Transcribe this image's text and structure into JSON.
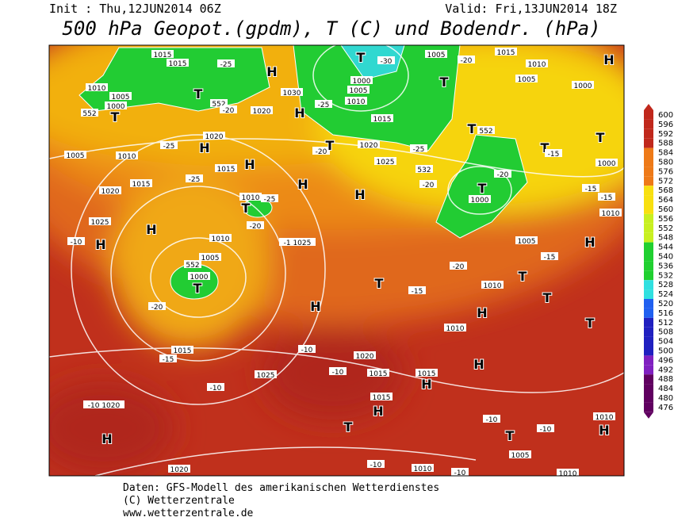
{
  "header": {
    "init": "Init : Thu,12JUN2014 06Z",
    "valid": "Valid: Fri,13JUN2014 18Z",
    "title": "500 hPa Geopot.(gpdm), T (C) und Bodendr. (hPa)"
  },
  "map": {
    "labels": [
      "1015",
      "1015",
      "-25",
      "1010",
      "1005",
      "1000",
      "552",
      "T",
      "T",
      "552",
      "-20",
      "1020",
      "H",
      "1030",
      "-25",
      "H",
      "T",
      "-30",
      "1000",
      "1005",
      "1010",
      "1015",
      "1005",
      "-20",
      "T",
      "1015",
      "1010",
      "1005",
      "1000",
      "H",
      "T",
      "552",
      "H",
      "1020",
      "-25",
      "1005",
      "1010",
      "-20",
      "T",
      "1020",
      "H",
      "1015",
      "1025",
      "-25",
      "T",
      "-15",
      "T",
      "1000",
      "1015",
      "-25",
      "1020",
      "1010",
      "-25",
      "T",
      "-20",
      "H",
      "H",
      "532",
      "-20",
      "-20",
      "T",
      "1000",
      "-15",
      "-15",
      "1010",
      "1025",
      "H",
      "-10",
      "H",
      "1010",
      "-1 1025",
      "1005",
      "552",
      "1000",
      "T",
      "-20",
      "1005",
      "H",
      "-15",
      "-20",
      "T",
      "1010",
      "T",
      "-15",
      "T",
      "H",
      "H",
      "T",
      "1010",
      "1015",
      "-15",
      "-10",
      "1020",
      "-10",
      "1015",
      "1015",
      "H",
      "1025",
      "H",
      "-10",
      "1015",
      "H",
      "-10 1020",
      "H",
      "T",
      "-10",
      "T",
      "-10",
      "1010",
      "H",
      "1005",
      "1020",
      "-10",
      "1010",
      "-10",
      "1010"
    ]
  },
  "colorbar": {
    "values": [
      600,
      596,
      592,
      588,
      584,
      580,
      576,
      572,
      568,
      564,
      560,
      556,
      552,
      548,
      544,
      540,
      536,
      532,
      528,
      524,
      520,
      516,
      512,
      508,
      504,
      500,
      496,
      492,
      488,
      484,
      480,
      476
    ]
  },
  "footer": {
    "lines": [
      "Daten: GFS-Modell des amerikanischen Wetterdienstes",
      "(C) Wetterzentrale",
      "www.wetterzentrale.de"
    ]
  }
}
